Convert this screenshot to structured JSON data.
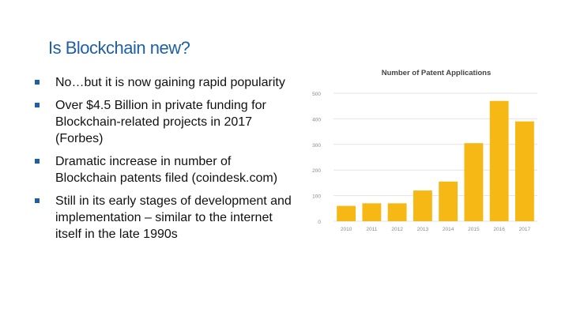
{
  "slide": {
    "title": "Is Blockchain new?",
    "bullets": [
      "No…but it is now gaining rapid popularity",
      "Over $4.5 Billion in private funding for Blockchain-related projects in 2017 (Forbes)",
      "Dramatic increase in number of Blockchain patents filed (coindesk.com)",
      "Still in its early stages of development and implementation – similar to the internet itself in the late 1990s"
    ]
  },
  "chart_data": {
    "type": "bar",
    "title": "Number of Patent Applications",
    "categories": [
      "2010",
      "2011",
      "2012",
      "2013",
      "2014",
      "2015",
      "2016",
      "2017"
    ],
    "values": [
      60,
      70,
      70,
      120,
      155,
      305,
      470,
      390
    ],
    "ylim": [
      0,
      500
    ],
    "yticks": [
      0,
      100,
      200,
      300,
      400,
      500
    ],
    "grid": true,
    "bar_color": "#f5b814",
    "legend": "none"
  }
}
